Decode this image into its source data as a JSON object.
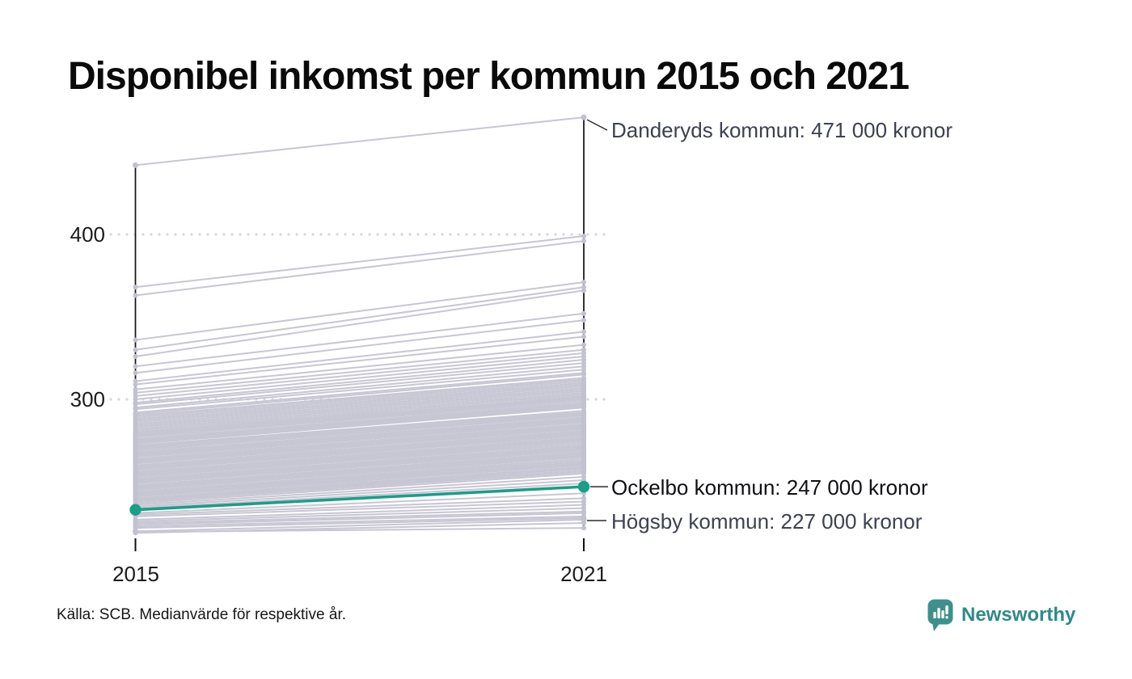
{
  "title": "Disponibel inkomst per kommun 2015 och 2021",
  "source_note": "Källa: SCB. Medianvärde för respektive år.",
  "branding": {
    "wordmark": "Newsworthy",
    "icon": "newsworthy-speech-bubble-chart-icon",
    "icon_color": "#3d908c",
    "wordmark_color": "#2e8a88"
  },
  "chart_data": {
    "type": "line",
    "subtype": "slope",
    "title": "Disponibel inkomst per kommun 2015 och 2021",
    "x_categories": [
      "2015",
      "2021"
    ],
    "y_axis": {
      "ticks": [
        400,
        300
      ],
      "tick_labels": [
        "400",
        "300"
      ],
      "unit": "tusen kronor",
      "grid": "dotted",
      "value_range_shown": [
        219,
        471
      ]
    },
    "colors": {
      "background_line": "#c7c6d3",
      "endpoint_dot": "#c2c1cf",
      "highlight": "#1a9e88",
      "axis": "#111111",
      "gridline": "#d6d6dc",
      "leader_line": "#2b2b2b"
    },
    "highlighted_series": {
      "name": "Ockelbo kommun",
      "values": [
        233,
        247
      ]
    },
    "labeled_series": [
      {
        "name": "Danderyds kommun",
        "values": [
          442,
          471
        ]
      },
      {
        "name": "Högsby kommun",
        "values": [
          220,
          227
        ]
      }
    ],
    "annotations": [
      {
        "text": "Danderyds kommun: 471 000 kronor",
        "anchor_value_2021": 471
      },
      {
        "text": "Ockelbo kommun: 247 000 kronor",
        "anchor_value_2021": 247
      },
      {
        "text": "Högsby kommun: 227 000 kronor",
        "anchor_value_2021": 227
      }
    ],
    "background_series": [
      [
        368,
        399
      ],
      [
        363,
        396
      ],
      [
        336,
        371
      ],
      [
        330,
        368
      ],
      [
        326,
        366
      ],
      [
        320,
        352
      ],
      [
        316,
        348
      ],
      [
        311,
        341
      ],
      [
        309,
        338
      ],
      [
        306,
        333
      ],
      [
        304,
        330
      ],
      [
        302,
        328
      ],
      [
        300,
        326
      ],
      [
        298,
        324
      ],
      [
        297,
        322
      ],
      [
        295,
        320
      ],
      [
        294,
        318
      ],
      [
        292,
        316
      ],
      [
        291,
        315
      ],
      [
        290,
        313
      ],
      [
        289,
        312
      ],
      [
        288,
        311
      ],
      [
        287,
        310
      ],
      [
        286,
        309
      ],
      [
        285,
        308
      ],
      [
        284,
        307
      ],
      [
        283,
        306
      ],
      [
        282,
        305
      ],
      [
        281,
        304
      ],
      [
        280,
        303
      ],
      [
        279,
        302
      ],
      [
        278,
        301
      ],
      [
        277,
        299
      ],
      [
        276,
        298
      ],
      [
        275,
        297
      ],
      [
        274,
        296
      ],
      [
        273,
        295
      ],
      [
        272,
        293
      ],
      [
        271,
        292
      ],
      [
        270,
        291
      ],
      [
        269,
        290
      ],
      [
        268,
        289
      ],
      [
        267,
        288
      ],
      [
        266,
        287
      ],
      [
        265,
        286
      ],
      [
        264,
        285
      ],
      [
        263,
        284
      ],
      [
        262,
        283
      ],
      [
        261,
        282
      ],
      [
        260,
        281
      ],
      [
        259,
        280
      ],
      [
        258,
        279
      ],
      [
        257,
        278
      ],
      [
        256,
        277
      ],
      [
        255,
        276
      ],
      [
        254,
        275
      ],
      [
        253,
        273
      ],
      [
        252,
        272
      ],
      [
        251,
        271
      ],
      [
        250,
        270
      ],
      [
        249,
        269
      ],
      [
        248,
        268
      ],
      [
        247,
        267
      ],
      [
        246,
        266
      ],
      [
        245,
        265
      ],
      [
        244,
        264
      ],
      [
        243,
        262
      ],
      [
        242,
        261
      ],
      [
        241,
        260
      ],
      [
        240,
        259
      ],
      [
        239,
        258
      ],
      [
        238,
        256
      ],
      [
        237,
        255
      ],
      [
        278.5,
        300.5
      ],
      [
        277.5,
        300
      ],
      [
        275.5,
        297.5
      ],
      [
        273.5,
        295.5
      ],
      [
        271.5,
        293
      ],
      [
        269.5,
        290.5
      ],
      [
        267.5,
        288.5
      ],
      [
        265.5,
        286.5
      ],
      [
        263.5,
        284.5
      ],
      [
        261.5,
        282.5
      ],
      [
        259.5,
        280.5
      ],
      [
        257.5,
        278.5
      ],
      [
        255.5,
        276.5
      ],
      [
        253.5,
        274
      ],
      [
        251.5,
        271.5
      ],
      [
        249.5,
        269.5
      ],
      [
        247.5,
        267.5
      ],
      [
        245.5,
        265.5
      ],
      [
        243.5,
        263
      ],
      [
        241.5,
        260.5
      ],
      [
        239.5,
        258.5
      ],
      [
        238.5,
        257
      ],
      [
        242.5,
        261.5
      ],
      [
        246.5,
        266.5
      ],
      [
        250.5,
        270.5
      ],
      [
        254.5,
        275.5
      ],
      [
        258.5,
        279.5
      ],
      [
        262.5,
        283.5
      ],
      [
        266.5,
        287.5
      ],
      [
        270.5,
        291.5
      ],
      [
        274.5,
        296.5
      ],
      [
        279.5,
        301.5
      ],
      [
        236,
        253
      ],
      [
        235,
        251
      ],
      [
        234,
        249
      ],
      [
        231,
        243
      ],
      [
        230,
        240
      ],
      [
        229,
        238
      ],
      [
        227,
        236
      ],
      [
        226,
        234
      ],
      [
        225,
        232
      ],
      [
        224,
        231
      ],
      [
        223,
        229
      ],
      [
        222,
        228
      ],
      [
        219,
        225
      ],
      [
        219.5,
        222
      ]
    ]
  }
}
